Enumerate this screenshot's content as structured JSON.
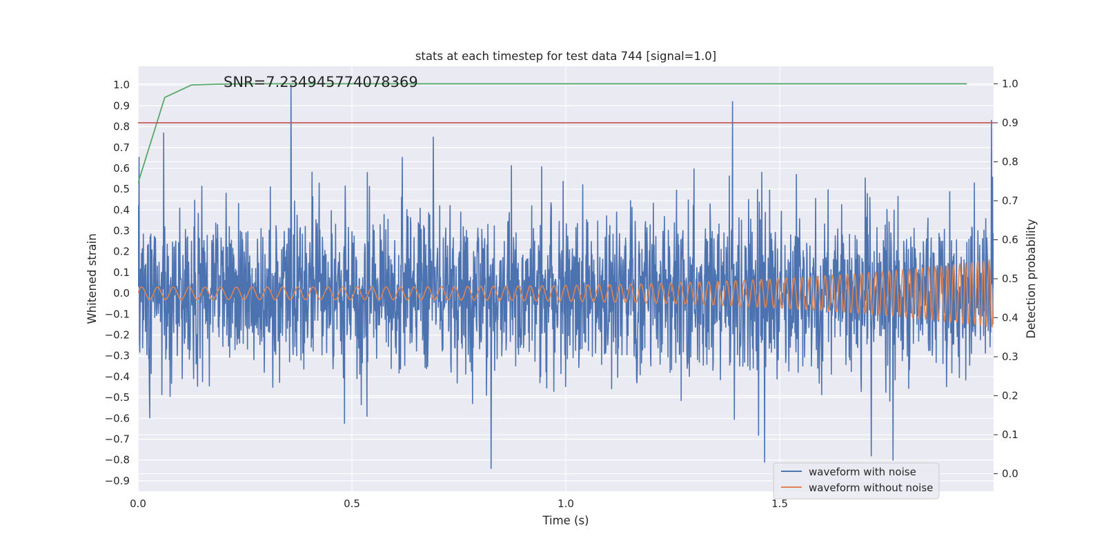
{
  "chart_data": {
    "type": "line",
    "title": "stats at each timestep for test data 744 [signal=1.0]",
    "xlabel": "Time (s)",
    "ylabel": "Whitened strain",
    "y2label": "Detection probability",
    "xlim": [
      0.0,
      2.0
    ],
    "ylim": [
      -0.95,
      1.09
    ],
    "y2lim": [
      -0.045,
      1.045
    ],
    "xticks": [
      0.0,
      0.5,
      1.0,
      1.5
    ],
    "xtick_labels": [
      "0.0",
      "0.5",
      "1.0",
      "1.5"
    ],
    "yticks": [
      1.0,
      0.9,
      0.8,
      0.7,
      0.6,
      0.5,
      0.4,
      0.3,
      0.2,
      0.1,
      0.0,
      -0.1,
      -0.2,
      -0.3,
      -0.4,
      -0.5,
      -0.6,
      -0.7,
      -0.8,
      -0.9
    ],
    "ytick_labels": [
      "1.0",
      "0.9",
      "0.8",
      "0.7",
      "0.6",
      "0.5",
      "0.4",
      "0.3",
      "0.2",
      "0.1",
      "0.0",
      "−0.1",
      "−0.2",
      "−0.3",
      "−0.4",
      "−0.5",
      "−0.6",
      "−0.7",
      "−0.8",
      "−0.9"
    ],
    "y2ticks": [
      1.0,
      0.9,
      0.8,
      0.7,
      0.6,
      0.5,
      0.4,
      0.3,
      0.2,
      0.1,
      0.0
    ],
    "y2tick_labels": [
      "1.0",
      "0.9",
      "0.8",
      "0.7",
      "0.6",
      "0.5",
      "0.4",
      "0.3",
      "0.2",
      "0.1",
      "0.0"
    ],
    "annotation": "SNR=7.234945774078369",
    "annotation_anchor": {
      "x": 0.2,
      "y": 1.02
    },
    "legend": {
      "placement": "lower-right",
      "entries": [
        "waveform with noise",
        "waveform without noise"
      ]
    },
    "series": [
      {
        "name": "waveform with noise",
        "axis": "left",
        "color": "#4c72b0",
        "kind": "noise",
        "approx_std": 0.2,
        "peaks": [
          {
            "x": 0.06,
            "y": 0.77
          },
          {
            "x": 0.358,
            "y": 1.0
          },
          {
            "x": 0.69,
            "y": 0.75
          },
          {
            "x": 1.39,
            "y": 0.92
          },
          {
            "x": 1.995,
            "y": 0.83
          }
        ],
        "troughs": [
          {
            "x": 0.825,
            "y": -0.84
          },
          {
            "x": 1.465,
            "y": -0.81
          },
          {
            "x": 1.765,
            "y": -0.8
          }
        ]
      },
      {
        "name": "waveform without noise",
        "axis": "left",
        "color": "#dd8452",
        "kind": "chirp",
        "amplitude_start": 0.03,
        "amplitude_end": 0.16,
        "cycles_per_second_start": 27,
        "cycles_per_second_end": 75
      },
      {
        "name": "detection probability",
        "axis": "right",
        "color": "#55a868",
        "x": [
          0.0,
          0.0625,
          0.125,
          0.1875,
          0.25,
          0.5,
          1.0,
          1.5,
          1.9375
        ],
        "values": [
          0.745,
          0.965,
          0.997,
          0.999,
          1.0,
          1.0,
          1.0,
          1.0,
          1.0
        ]
      },
      {
        "name": "threshold",
        "axis": "right",
        "color": "#c44e52",
        "kind": "hline",
        "y": 0.9
      }
    ]
  }
}
